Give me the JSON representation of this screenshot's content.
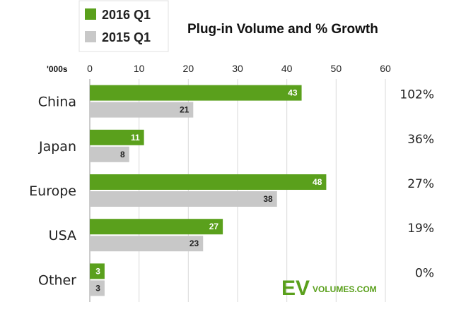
{
  "chart_data": {
    "type": "bar",
    "orientation": "horizontal",
    "title": "Plug-in Volume and % Growth",
    "unit_label": "'000s",
    "xlim": [
      0,
      60
    ],
    "xticks": [
      "0",
      "10",
      "20",
      "30",
      "40",
      "50",
      "60"
    ],
    "grid": true,
    "legend_position": "top-left",
    "categories": [
      "China",
      "Japan",
      "Europe",
      "USA",
      "Other"
    ],
    "series": [
      {
        "name": "2016 Q1",
        "color": "#5aa01c",
        "values": [
          43,
          11,
          48,
          27,
          3
        ]
      },
      {
        "name": "2015 Q1",
        "color": "#c8c8c8",
        "values": [
          21,
          8,
          38,
          23,
          3
        ]
      }
    ],
    "growth": [
      "102%",
      "36%",
      "27%",
      "19%",
      "0%"
    ]
  },
  "logo": {
    "main": "EV",
    "sub": "VOLUMES.COM"
  }
}
